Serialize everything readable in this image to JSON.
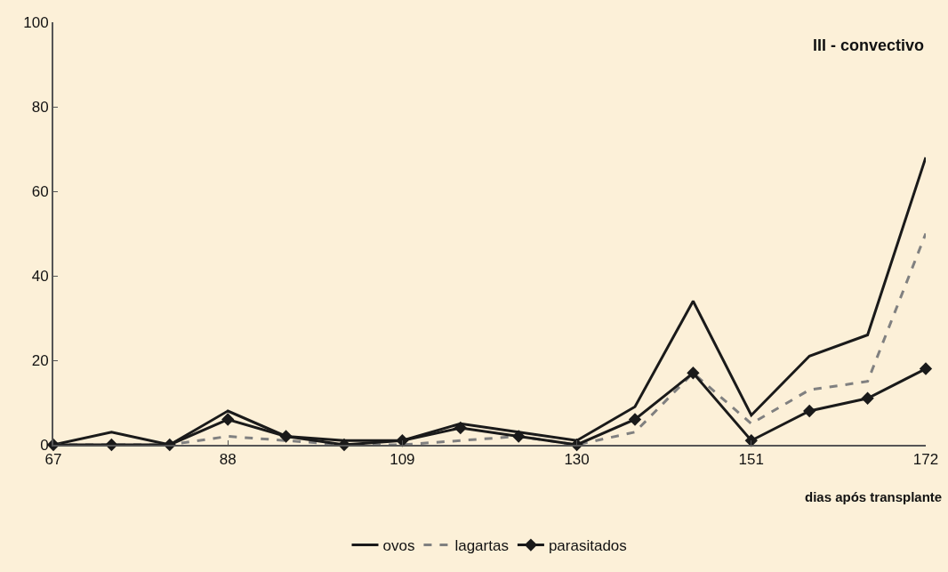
{
  "chart_data": {
    "type": "line",
    "title": "III - convectivo",
    "xlabel": "dias após transplante",
    "x": [
      67,
      74,
      81,
      88,
      95,
      102,
      109,
      116,
      123,
      130,
      137,
      144,
      151,
      158,
      165,
      172
    ],
    "series": [
      {
        "name": "ovos",
        "color": "#1a1a1a",
        "line_style": "solid",
        "marker": "none",
        "values": [
          0,
          3,
          0,
          8,
          2,
          1,
          1,
          5,
          3,
          1,
          9,
          34,
          7,
          21,
          26,
          68
        ]
      },
      {
        "name": "lagartas",
        "color": "#808080",
        "line_style": "dashed",
        "marker": "none",
        "values": [
          0,
          0,
          0,
          2,
          1,
          0,
          0,
          1,
          2,
          0,
          3,
          17,
          5,
          13,
          15,
          50
        ]
      },
      {
        "name": "parasitados",
        "color": "#1a1a1a",
        "line_style": "solid",
        "marker": "diamond",
        "values": [
          0,
          0,
          0,
          6,
          2,
          0,
          1,
          4,
          2,
          0,
          6,
          17,
          1,
          8,
          11,
          18
        ]
      }
    ],
    "xlim": [
      67,
      172
    ],
    "xticks": [
      67,
      88,
      109,
      130,
      151,
      172
    ],
    "ylim": [
      0,
      100
    ],
    "yticks": [
      0,
      20,
      40,
      60,
      80,
      100
    ],
    "grid": false,
    "legend": "bottom"
  }
}
